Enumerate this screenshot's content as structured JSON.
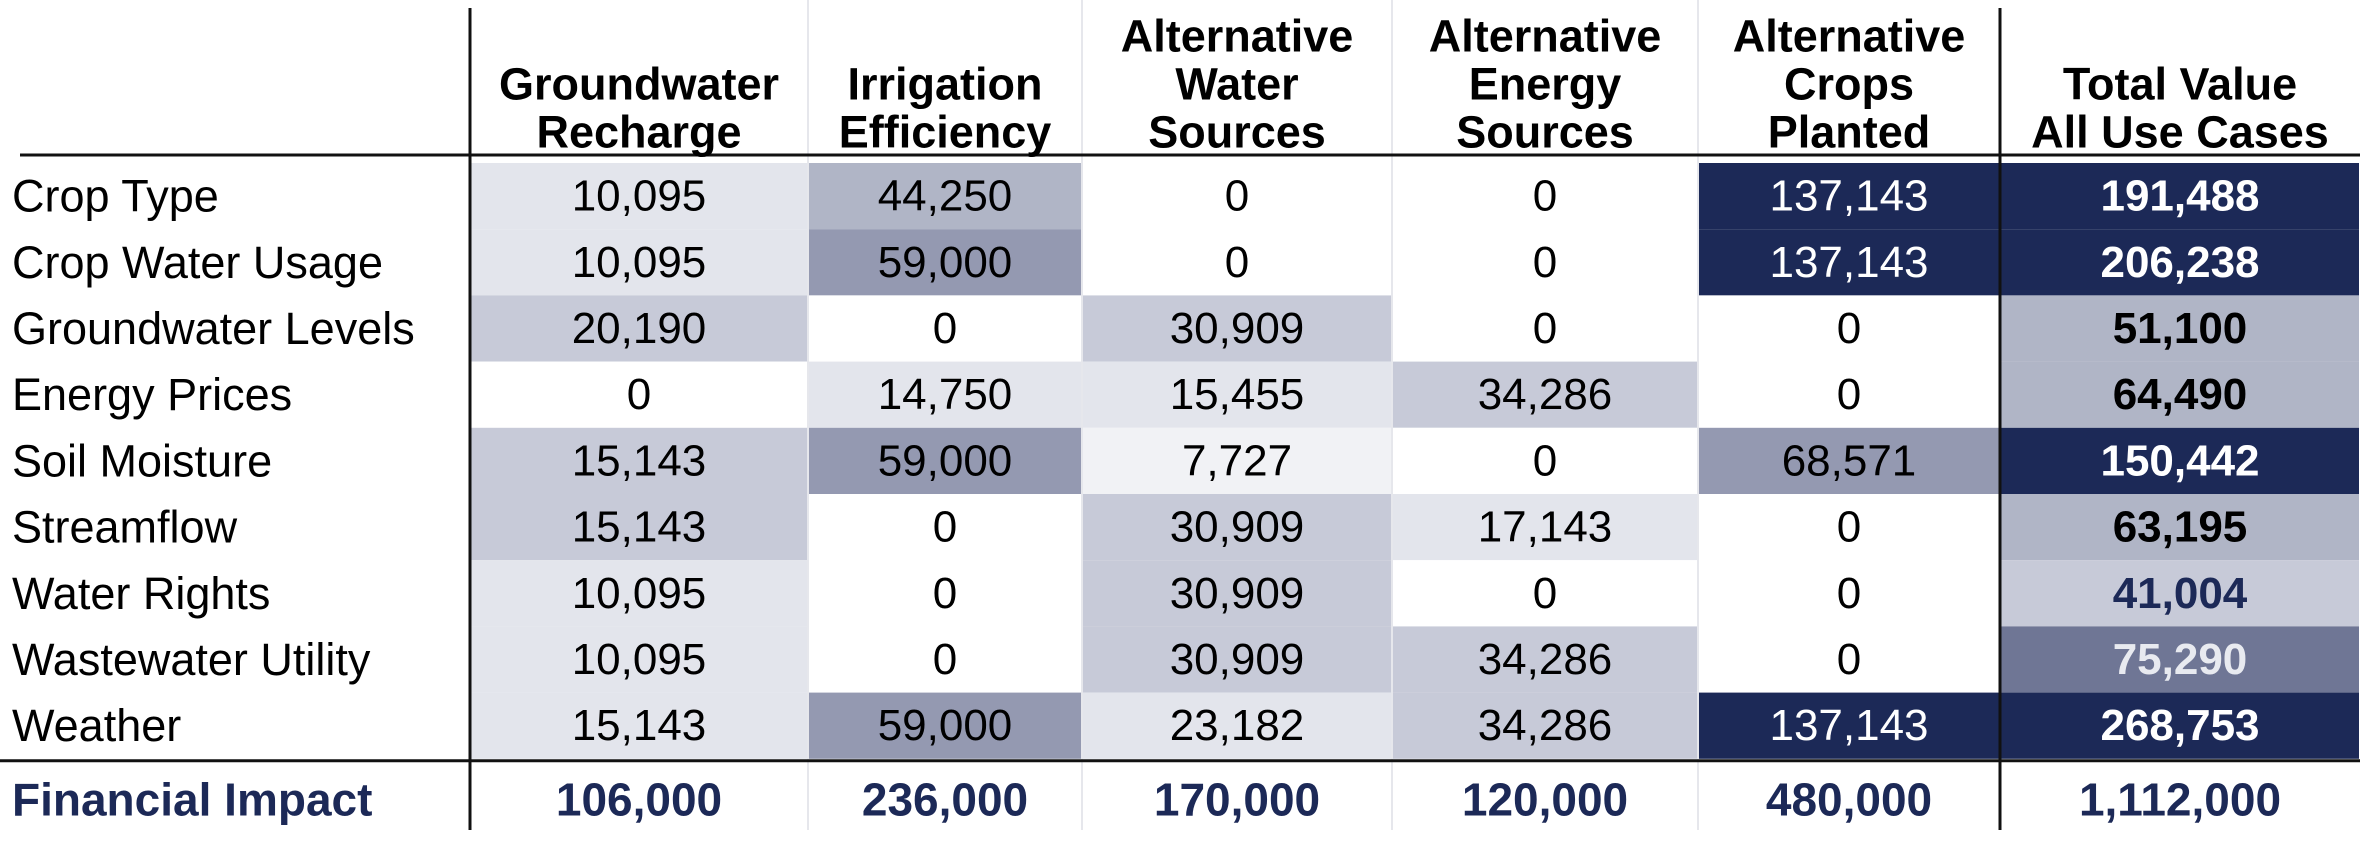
{
  "chart_data": {
    "type": "table",
    "columns": [
      {
        "lines": [
          "Groundwater",
          "Recharge"
        ]
      },
      {
        "lines": [
          "Irrigation",
          "Efficiency"
        ]
      },
      {
        "lines": [
          "Alternative",
          "Water",
          "Sources"
        ]
      },
      {
        "lines": [
          "Alternative",
          "Energy",
          "Sources"
        ]
      },
      {
        "lines": [
          "Alternative",
          "Crops",
          "Planted"
        ]
      },
      {
        "lines": [
          "Total Value",
          "All Use Cases"
        ]
      }
    ],
    "rows": [
      {
        "label": "Crop Type",
        "values": [
          "10,095",
          "44,250",
          "0",
          "0",
          "137,143",
          "191,488"
        ],
        "shades": [
          1,
          3,
          0,
          0,
          5,
          5
        ]
      },
      {
        "label": "Crop Water Usage",
        "values": [
          "10,095",
          "59,000",
          "0",
          "0",
          "137,143",
          "206,238"
        ],
        "shades": [
          1,
          4,
          0,
          0,
          5,
          5
        ]
      },
      {
        "label": "Groundwater Levels",
        "values": [
          "20,190",
          "0",
          "30,909",
          "0",
          "0",
          "51,100"
        ],
        "shades": [
          2,
          0,
          2,
          0,
          0,
          3
        ]
      },
      {
        "label": "Energy Prices",
        "values": [
          "0",
          "14,750",
          "15,455",
          "34,286",
          "0",
          "64,490"
        ],
        "shades": [
          0,
          1,
          1,
          2,
          0,
          3
        ]
      },
      {
        "label": "Soil Moisture",
        "values": [
          "15,143",
          "59,000",
          "7,727",
          "0",
          "68,571",
          "150,442"
        ],
        "shades": [
          2,
          4,
          0.5,
          0,
          4,
          5
        ]
      },
      {
        "label": "Streamflow",
        "values": [
          "15,143",
          "0",
          "30,909",
          "17,143",
          "0",
          "63,195"
        ],
        "shades": [
          2,
          0,
          2,
          1,
          0,
          3
        ]
      },
      {
        "label": "Water Rights",
        "values": [
          "10,095",
          "0",
          "30,909",
          "0",
          "0",
          "41,004"
        ],
        "shades": [
          1,
          0,
          2,
          0,
          0,
          2
        ]
      },
      {
        "label": "Wastewater Utility",
        "values": [
          "10,095",
          "0",
          "30,909",
          "34,286",
          "0",
          "75,290"
        ],
        "shades": [
          1,
          0,
          2,
          2,
          0,
          4
        ]
      },
      {
        "label": "Weather",
        "values": [
          "15,143",
          "59,000",
          "23,182",
          "34,286",
          "137,143",
          "268,753"
        ],
        "shades": [
          1,
          4,
          1,
          2,
          5,
          5
        ]
      }
    ],
    "footer": {
      "label": "Financial Impact",
      "values": [
        "106,000",
        "236,000",
        "170,000",
        "120,000",
        "480,000",
        "1,112,000"
      ]
    },
    "colors": {
      "navy": "#1c2957",
      "shade_0": "#ffffff",
      "shade_0_5": "#f1f2f5",
      "shade_1": "#e3e5ec",
      "shade_2": "#c7cad8",
      "shade_3": "#b0b5c6",
      "shade_4": "#9499b1",
      "shade_4_total": "#6f7695",
      "shade_5": "#1c2957"
    }
  }
}
